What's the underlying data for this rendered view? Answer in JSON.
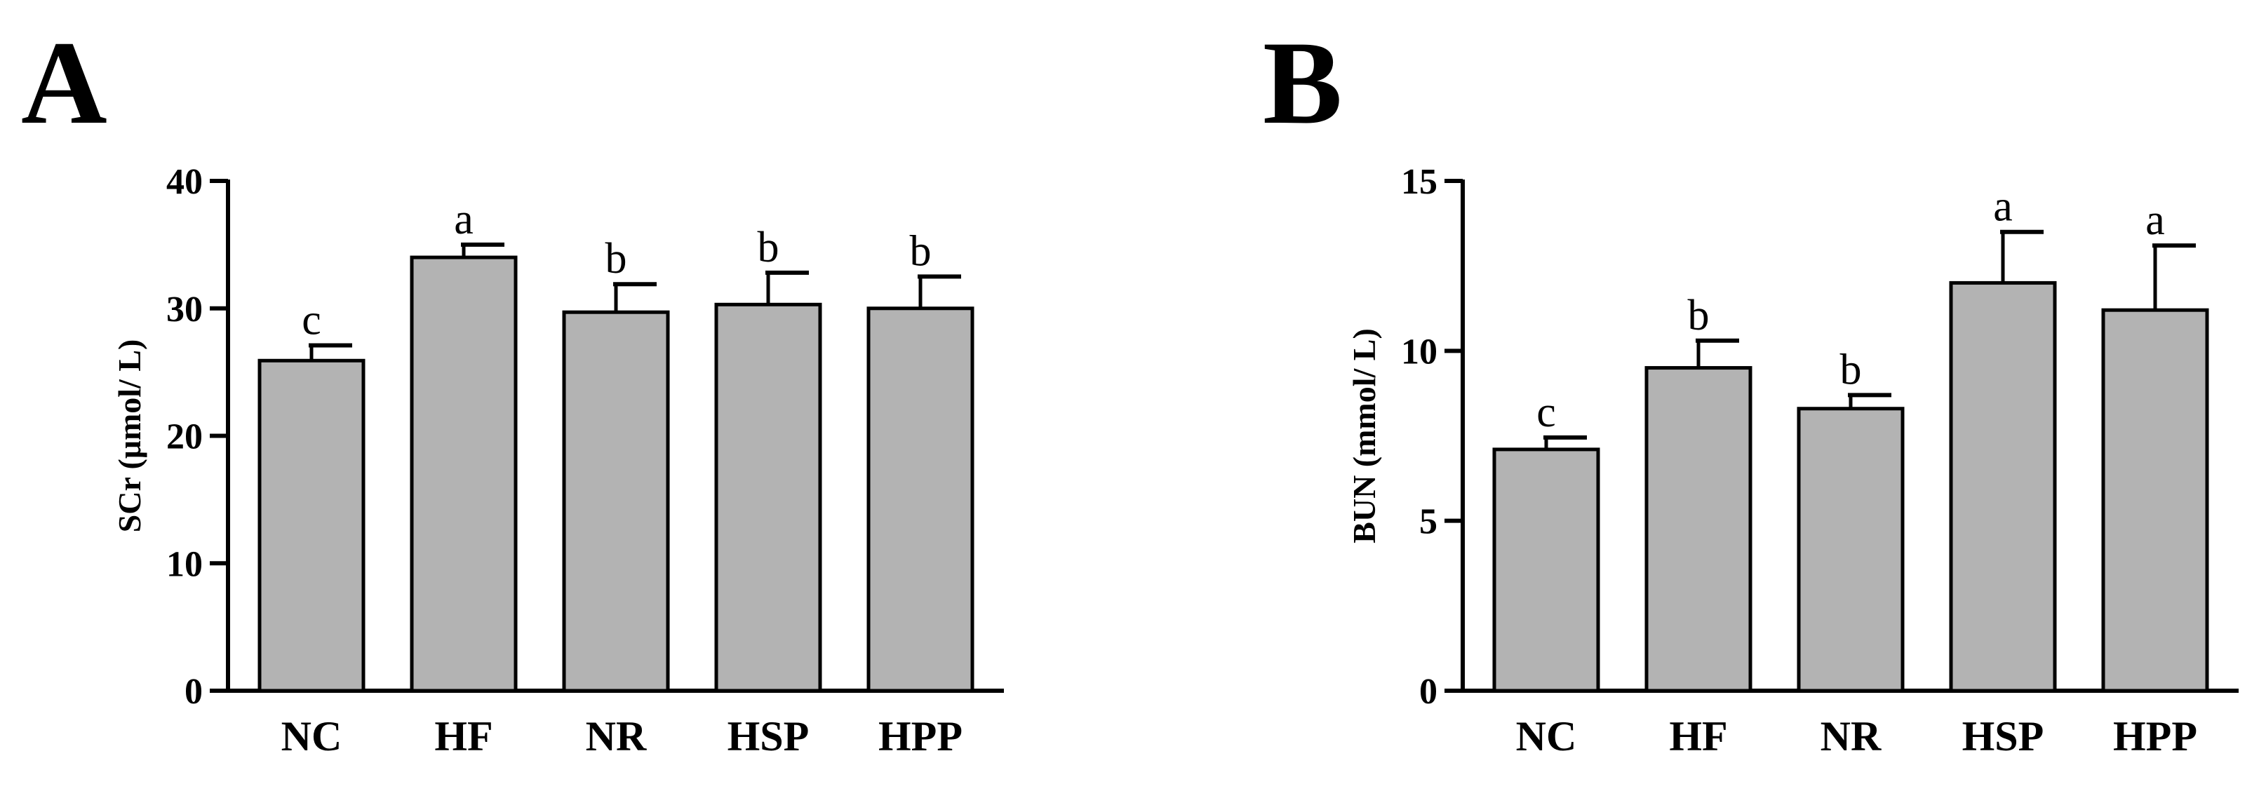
{
  "chart_data": [
    {
      "type": "bar",
      "panel": "A",
      "categories": [
        "NC",
        "HF",
        "NR",
        "HSP",
        "HPP"
      ],
      "values": [
        25.9,
        34.0,
        29.7,
        30.3,
        30.0
      ],
      "errors": [
        1.2,
        1.0,
        2.2,
        2.5,
        2.5
      ],
      "significance": [
        "c",
        "a",
        "b",
        "b",
        "b"
      ],
      "ylabel": "SCr (μmol/ L)",
      "xlabel": "",
      "ylim": [
        0,
        40
      ],
      "yticks": [
        0,
        10,
        20,
        30,
        40
      ],
      "bar_color": "#b3b3b3",
      "grid": false
    },
    {
      "type": "bar",
      "panel": "B",
      "categories": [
        "NC",
        "HF",
        "NR",
        "HSP",
        "HPP"
      ],
      "values": [
        7.1,
        9.5,
        8.3,
        12.0,
        11.2
      ],
      "errors": [
        0.35,
        0.8,
        0.4,
        1.5,
        1.9
      ],
      "significance": [
        "c",
        "b",
        "b",
        "a",
        "a"
      ],
      "ylabel": "BUN (mmol/ L)",
      "xlabel": "",
      "ylim": [
        0,
        15
      ],
      "yticks": [
        0,
        5,
        10,
        15
      ],
      "bar_color": "#b3b3b3",
      "grid": false
    }
  ]
}
